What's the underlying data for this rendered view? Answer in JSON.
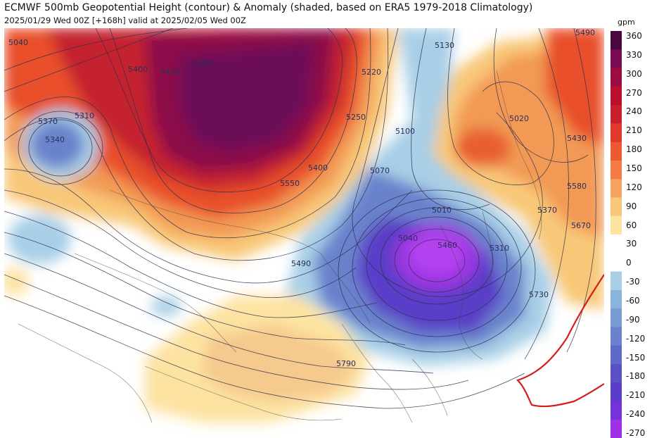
{
  "title": "ECMWF 500mb Geopotential Height (contour) & Anomaly (shaded, based on ERA5 1979-2018 Climatology)",
  "subtitle": "2025/01/29 Wed 00Z [+168h] valid at 2025/02/05 Wed 00Z",
  "colorbar": {
    "unit": "gpm",
    "ticks": [
      "360",
      "330",
      "300",
      "270",
      "240",
      "210",
      "180",
      "150",
      "120",
      "90",
      "60",
      "30",
      "0",
      "-30",
      "-60",
      "-90",
      "-120",
      "-150",
      "-180",
      "-210",
      "-240",
      "-270"
    ]
  },
  "contour_labels": [
    "5040",
    "5310",
    "5370",
    "5340",
    "5400",
    "5430",
    "5460",
    "5220",
    "5250",
    "5400",
    "5550",
    "5130",
    "5100",
    "5070",
    "5010",
    "5040",
    "5460",
    "5310",
    "5490",
    "5020",
    "5430",
    "5580",
    "5370",
    "5670",
    "5730",
    "5790",
    "5490"
  ],
  "colors": {
    "extreme_positive": "#7a0a55",
    "strong_positive": "#b8102e",
    "moderate_positive": "#e8502c",
    "weak_positive": "#f8c878",
    "neutral": "#ffffff",
    "weak_negative": "#a8cfe6",
    "moderate_negative": "#6a82cc",
    "strong_negative": "#5a3cc8",
    "extreme_negative": "#a030e8",
    "line_of_interest": "#d81c1c"
  }
}
